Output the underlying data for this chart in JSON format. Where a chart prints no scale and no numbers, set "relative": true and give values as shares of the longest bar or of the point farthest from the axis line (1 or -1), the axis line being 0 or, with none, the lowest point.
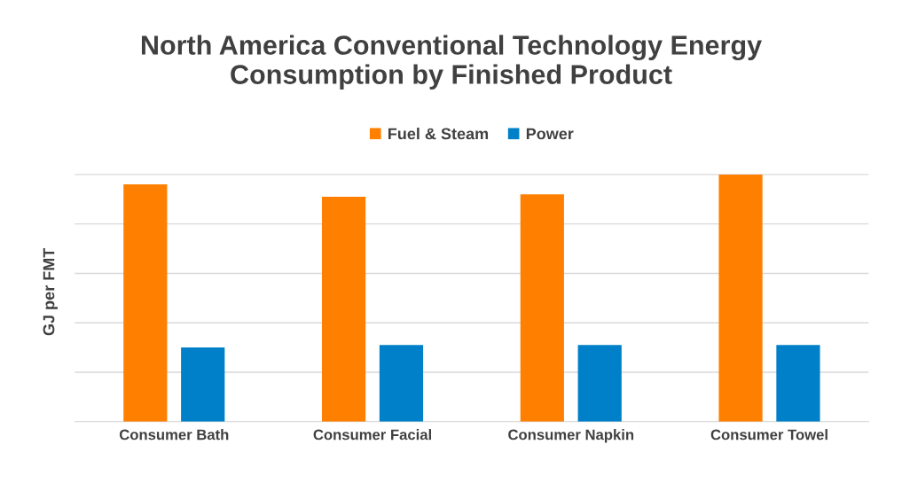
{
  "chart_data": {
    "type": "bar",
    "title": "North America Conventional Technology Energy\nConsumption by Finished Product",
    "ylabel": "GJ per FMT",
    "categories": [
      "Consumer Bath",
      "Consumer Facial",
      "Consumer Napkin",
      "Consumer Towel"
    ],
    "relative": true,
    "grid": "y",
    "legend": "top",
    "series": [
      {
        "name": "Fuel & Steam",
        "color": "#ff8000",
        "values": [
          0.96,
          0.91,
          0.92,
          1.0
        ]
      },
      {
        "name": "Power",
        "color": "#0080c8",
        "values": [
          0.3,
          0.31,
          0.31,
          0.31
        ]
      }
    ]
  }
}
